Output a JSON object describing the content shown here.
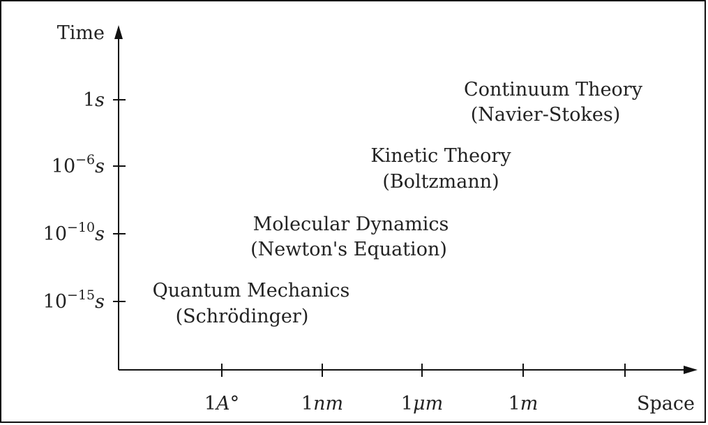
{
  "axes": {
    "y_label": "Time",
    "x_label": "Space"
  },
  "y_ticks": [
    {
      "base": "1",
      "unit": "s"
    },
    {
      "base": "10",
      "exp": "−6",
      "unit": "s"
    },
    {
      "base": "10",
      "exp": "−10",
      "unit": "s"
    },
    {
      "base": "10",
      "exp": "−15",
      "unit": "s"
    }
  ],
  "x_ticks": [
    {
      "base": "1",
      "unit": "A°"
    },
    {
      "base": "1",
      "unit": "nm"
    },
    {
      "base": "1",
      "unit": "μm"
    },
    {
      "base": "1",
      "unit": "m"
    }
  ],
  "regions": [
    {
      "name": "Continuum Theory",
      "detail": "(Navier-Stokes)"
    },
    {
      "name": "Kinetic Theory",
      "detail": "(Boltzmann)"
    },
    {
      "name": "Molecular Dynamics",
      "detail": "(Newton's Equation)"
    },
    {
      "name": "Quantum Mechanics",
      "detail": "(Schrödinger)"
    }
  ]
}
